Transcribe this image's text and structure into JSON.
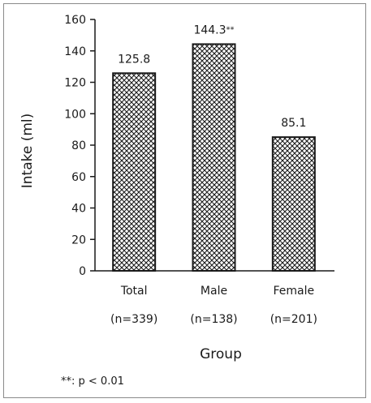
{
  "chart_data": {
    "type": "bar",
    "ylabel": "Intake (ml)",
    "xlabel": "Group",
    "ylim": [
      0,
      160
    ],
    "yticks": [
      0,
      20,
      40,
      60,
      80,
      100,
      120,
      140,
      160
    ],
    "categories": [
      "Total",
      "Male",
      "Female"
    ],
    "sublabels": [
      "(n=339)",
      "(n=138)",
      "(n=201)"
    ],
    "values": [
      125.8,
      144.3,
      85.1
    ],
    "value_labels": [
      "125.8",
      "144.3",
      "85.1"
    ],
    "markers": [
      "",
      "**",
      ""
    ],
    "bar_fill": "crosshatch",
    "grid": false,
    "legend": "none",
    "footnote": "**: p < 0.01"
  }
}
